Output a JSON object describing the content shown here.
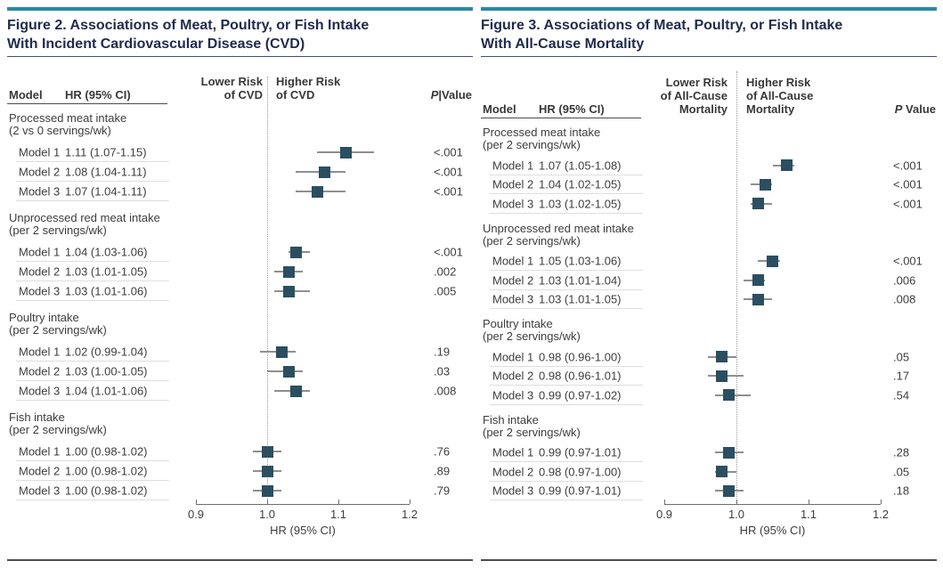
{
  "colors": {
    "accent_bar": "#2c88a6",
    "marker": "#2b4f60",
    "whisker": "#8f8f8f",
    "title_text": "#202c4e"
  },
  "chart_data": [
    {
      "type": "scatter",
      "subtype": "forest-plot",
      "title_line1": "Figure 2. Associations of Meat, Poultry, or Fish Intake",
      "title_line2": "With Incident Cardiovascular Disease (CVD)",
      "columns": {
        "model": "Model",
        "hr": "HR (95% CI)"
      },
      "lower_risk_label_lines": [
        "Lower Risk",
        "of CVD"
      ],
      "higher_risk_label_lines": [
        "Higher Risk",
        "of CVD"
      ],
      "p_value_header": "P|Value",
      "xlabel": "HR (95% CI)",
      "xticks": [
        "0.9",
        "1.0",
        "1.1",
        "1.2"
      ],
      "xlim": [
        0.9,
        1.2
      ],
      "reference_line": 1.0,
      "grid": false,
      "groups": [
        {
          "label": "Processed meat intake",
          "sublabel": "(2 vs 0 servings/wk)",
          "rows": [
            {
              "model": "Model 1",
              "hr": 1.11,
              "ci_low": 1.07,
              "ci_high": 1.15,
              "hr_ci_text": "1.11 (1.07-1.15)",
              "p_value": "<.001"
            },
            {
              "model": "Model 2",
              "hr": 1.08,
              "ci_low": 1.04,
              "ci_high": 1.11,
              "hr_ci_text": "1.08 (1.04-1.11)",
              "p_value": "<.001"
            },
            {
              "model": "Model 3",
              "hr": 1.07,
              "ci_low": 1.04,
              "ci_high": 1.11,
              "hr_ci_text": "1.07 (1.04-1.11)",
              "p_value": "<.001"
            }
          ]
        },
        {
          "label": "Unprocessed red meat intake",
          "sublabel": "(per 2 servings/wk)",
          "rows": [
            {
              "model": "Model 1",
              "hr": 1.04,
              "ci_low": 1.03,
              "ci_high": 1.06,
              "hr_ci_text": "1.04 (1.03-1.06)",
              "p_value": "<.001"
            },
            {
              "model": "Model 2",
              "hr": 1.03,
              "ci_low": 1.01,
              "ci_high": 1.05,
              "hr_ci_text": "1.03 (1.01-1.05)",
              "p_value": ".002"
            },
            {
              "model": "Model 3",
              "hr": 1.03,
              "ci_low": 1.01,
              "ci_high": 1.06,
              "hr_ci_text": "1.03 (1.01-1.06)",
              "p_value": ".005"
            }
          ]
        },
        {
          "label": "Poultry intake",
          "sublabel": "(per 2 servings/wk)",
          "rows": [
            {
              "model": "Model 1",
              "hr": 1.02,
              "ci_low": 0.99,
              "ci_high": 1.04,
              "hr_ci_text": "1.02 (0.99-1.04)",
              "p_value": ".19"
            },
            {
              "model": "Model 2",
              "hr": 1.03,
              "ci_low": 1.0,
              "ci_high": 1.05,
              "hr_ci_text": "1.03 (1.00-1.05)",
              "p_value": ".03"
            },
            {
              "model": "Model 3",
              "hr": 1.04,
              "ci_low": 1.01,
              "ci_high": 1.06,
              "hr_ci_text": "1.04 (1.01-1.06)",
              "p_value": ".008"
            }
          ]
        },
        {
          "label": "Fish intake",
          "sublabel": "(per 2 servings/wk)",
          "rows": [
            {
              "model": "Model 1",
              "hr": 1.0,
              "ci_low": 0.98,
              "ci_high": 1.02,
              "hr_ci_text": "1.00 (0.98-1.02)",
              "p_value": ".76"
            },
            {
              "model": "Model 2",
              "hr": 1.0,
              "ci_low": 0.98,
              "ci_high": 1.02,
              "hr_ci_text": "1.00 (0.98-1.02)",
              "p_value": ".89"
            },
            {
              "model": "Model 3",
              "hr": 1.0,
              "ci_low": 0.98,
              "ci_high": 1.02,
              "hr_ci_text": "1.00 (0.98-1.02)",
              "p_value": ".79"
            }
          ]
        }
      ]
    },
    {
      "type": "scatter",
      "subtype": "forest-plot",
      "title_line1": "Figure 3. Associations of Meat, Poultry, or Fish Intake",
      "title_line2": "With All-Cause Mortality",
      "columns": {
        "model": "Model",
        "hr": "HR (95% CI)"
      },
      "lower_risk_label_lines": [
        "Lower Risk",
        "of All-Cause",
        "Mortality"
      ],
      "higher_risk_label_lines": [
        "Higher Risk",
        "of All-Cause",
        "Mortality"
      ],
      "p_value_header": "P Value",
      "xlabel": "HR (95% CI)",
      "xticks": [
        "0.9",
        "1.0",
        "1.1",
        "1.2"
      ],
      "xlim": [
        0.9,
        1.2
      ],
      "reference_line": 1.0,
      "grid": false,
      "groups": [
        {
          "label": "Processed meat intake",
          "sublabel": "(per 2 servings/wk)",
          "rows": [
            {
              "model": "Model 1",
              "hr": 1.07,
              "ci_low": 1.05,
              "ci_high": 1.08,
              "hr_ci_text": "1.07 (1.05-1.08)",
              "p_value": "<.001"
            },
            {
              "model": "Model 2",
              "hr": 1.04,
              "ci_low": 1.02,
              "ci_high": 1.05,
              "hr_ci_text": "1.04 (1.02-1.05)",
              "p_value": "<.001"
            },
            {
              "model": "Model 3",
              "hr": 1.03,
              "ci_low": 1.02,
              "ci_high": 1.05,
              "hr_ci_text": "1.03 (1.02-1.05)",
              "p_value": "<.001"
            }
          ]
        },
        {
          "label": "Unprocessed red meat intake",
          "sublabel": "(per 2 servings/wk)",
          "rows": [
            {
              "model": "Model 1",
              "hr": 1.05,
              "ci_low": 1.03,
              "ci_high": 1.06,
              "hr_ci_text": "1.05 (1.03-1.06)",
              "p_value": "<.001"
            },
            {
              "model": "Model 2",
              "hr": 1.03,
              "ci_low": 1.01,
              "ci_high": 1.04,
              "hr_ci_text": "1.03 (1.01-1.04)",
              "p_value": ".006"
            },
            {
              "model": "Model 3",
              "hr": 1.03,
              "ci_low": 1.01,
              "ci_high": 1.05,
              "hr_ci_text": "1.03 (1.01-1.05)",
              "p_value": ".008"
            }
          ]
        },
        {
          "label": "Poultry intake",
          "sublabel": "(per 2 servings/wk)",
          "rows": [
            {
              "model": "Model 1",
              "hr": 0.98,
              "ci_low": 0.96,
              "ci_high": 1.0,
              "hr_ci_text": "0.98 (0.96-1.00)",
              "p_value": ".05"
            },
            {
              "model": "Model 2",
              "hr": 0.98,
              "ci_low": 0.96,
              "ci_high": 1.01,
              "hr_ci_text": "0.98 (0.96-1.01)",
              "p_value": ".17"
            },
            {
              "model": "Model 3",
              "hr": 0.99,
              "ci_low": 0.97,
              "ci_high": 1.02,
              "hr_ci_text": "0.99 (0.97-1.02)",
              "p_value": ".54"
            }
          ]
        },
        {
          "label": "Fish intake",
          "sublabel": "(per 2 servings/wk)",
          "rows": [
            {
              "model": "Model 1",
              "hr": 0.99,
              "ci_low": 0.97,
              "ci_high": 1.01,
              "hr_ci_text": "0.99 (0.97-1.01)",
              "p_value": ".28"
            },
            {
              "model": "Model 2",
              "hr": 0.98,
              "ci_low": 0.97,
              "ci_high": 1.0,
              "hr_ci_text": "0.98 (0.97-1.00)",
              "p_value": ".05"
            },
            {
              "model": "Model 3",
              "hr": 0.99,
              "ci_low": 0.97,
              "ci_high": 1.01,
              "hr_ci_text": "0.99 (0.97-1.01)",
              "p_value": ".18"
            }
          ]
        }
      ]
    }
  ]
}
